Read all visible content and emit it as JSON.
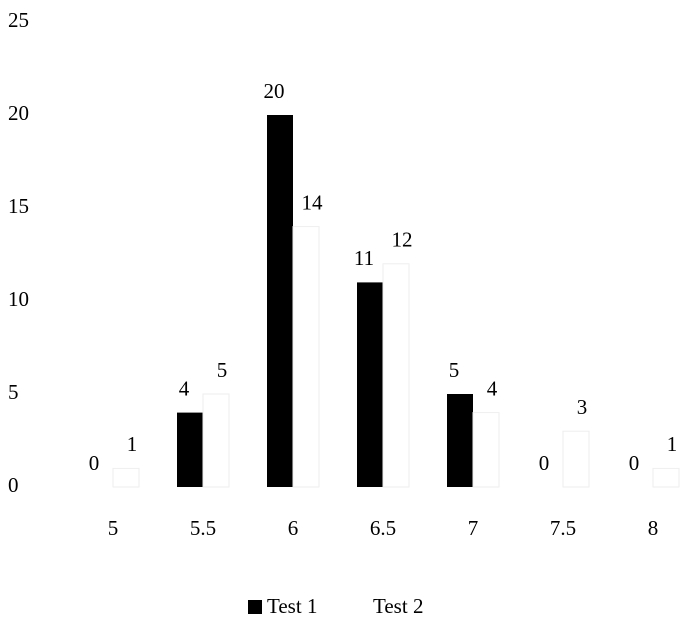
{
  "chart_data": {
    "type": "bar",
    "categories": [
      "5",
      "5.5",
      "6",
      "6.5",
      "7",
      "7.5",
      "8"
    ],
    "series": [
      {
        "name": "Test 1",
        "color": "#000000",
        "values": [
          0,
          4,
          20,
          11,
          5,
          0,
          0
        ]
      },
      {
        "name": "Test 2",
        "color": "#ffffff",
        "values": [
          1,
          5,
          14,
          12,
          4,
          3,
          1
        ]
      }
    ],
    "ylim": [
      0,
      25
    ],
    "yticks": [
      0,
      5,
      10,
      15,
      20,
      25
    ],
    "grid": false,
    "legend": "bottom"
  }
}
